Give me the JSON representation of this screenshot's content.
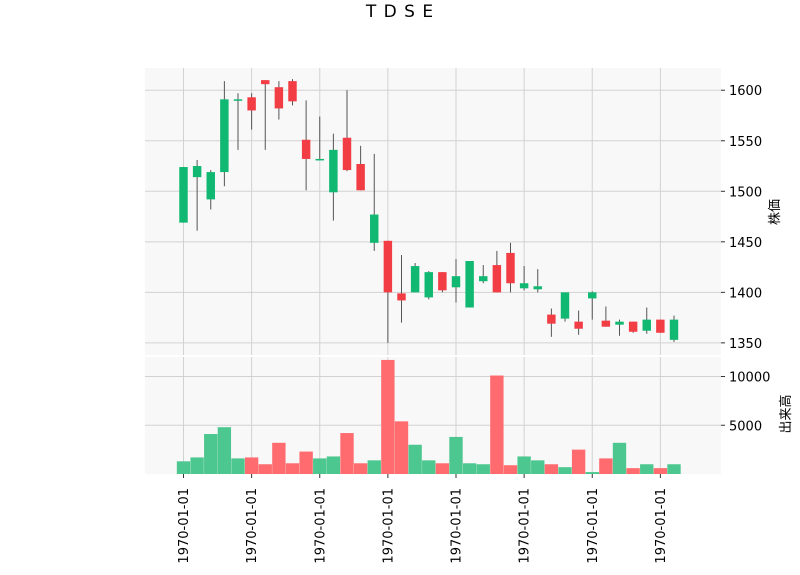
{
  "chart_data": {
    "type": "candlestick",
    "title": "T D S E",
    "price_panel": {
      "ylabel": "株価",
      "ylim": [
        1338,
        1622
      ],
      "yticks": [
        1350,
        1400,
        1450,
        1500,
        1550,
        1600
      ],
      "up_color": "#11b872",
      "down_color": "#f23d44",
      "wick_color": "#555555",
      "candles": [
        {
          "o": 1469,
          "h": 1524,
          "l": 1469,
          "c": 1524
        },
        {
          "o": 1514,
          "h": 1531,
          "l": 1461,
          "c": 1525
        },
        {
          "o": 1492,
          "h": 1521,
          "l": 1482,
          "c": 1519
        },
        {
          "o": 1519,
          "h": 1609,
          "l": 1505,
          "c": 1591
        },
        {
          "o": 1591,
          "h": 1597,
          "l": 1541,
          "c": 1591
        },
        {
          "o": 1593,
          "h": 1597,
          "l": 1561,
          "c": 1580
        },
        {
          "o": 1610,
          "h": 1610,
          "l": 1541,
          "c": 1606
        },
        {
          "o": 1603,
          "h": 1609,
          "l": 1571,
          "c": 1582
        },
        {
          "o": 1609,
          "h": 1611,
          "l": 1585,
          "c": 1589
        },
        {
          "o": 1551,
          "h": 1590,
          "l": 1501,
          "c": 1532
        },
        {
          "o": 1532,
          "h": 1574,
          "l": 1531,
          "c": 1532
        },
        {
          "o": 1499,
          "h": 1557,
          "l": 1471,
          "c": 1541
        },
        {
          "o": 1553,
          "h": 1600,
          "l": 1520,
          "c": 1521
        },
        {
          "o": 1527,
          "h": 1545,
          "l": 1501,
          "c": 1501
        },
        {
          "o": 1449,
          "h": 1537,
          "l": 1441,
          "c": 1477
        },
        {
          "o": 1451,
          "h": 1451,
          "l": 1350,
          "c": 1400
        },
        {
          "o": 1399,
          "h": 1437,
          "l": 1370,
          "c": 1392
        },
        {
          "o": 1400,
          "h": 1429,
          "l": 1400,
          "c": 1426
        },
        {
          "o": 1395,
          "h": 1421,
          "l": 1393,
          "c": 1420
        },
        {
          "o": 1420,
          "h": 1420,
          "l": 1400,
          "c": 1402
        },
        {
          "o": 1405,
          "h": 1433,
          "l": 1390,
          "c": 1416
        },
        {
          "o": 1385,
          "h": 1431,
          "l": 1385,
          "c": 1431
        },
        {
          "o": 1411,
          "h": 1427,
          "l": 1409,
          "c": 1416
        },
        {
          "o": 1427,
          "h": 1441,
          "l": 1400,
          "c": 1400
        },
        {
          "o": 1439,
          "h": 1449,
          "l": 1400,
          "c": 1409
        },
        {
          "o": 1404,
          "h": 1426,
          "l": 1402,
          "c": 1409
        },
        {
          "o": 1403,
          "h": 1423,
          "l": 1400,
          "c": 1406
        },
        {
          "o": 1378,
          "h": 1384,
          "l": 1356,
          "c": 1369
        },
        {
          "o": 1374,
          "h": 1400,
          "l": 1371,
          "c": 1400
        },
        {
          "o": 1371,
          "h": 1382,
          "l": 1358,
          "c": 1364
        },
        {
          "o": 1394,
          "h": 1401,
          "l": 1373,
          "c": 1400
        },
        {
          "o": 1372,
          "h": 1386,
          "l": 1366,
          "c": 1366
        },
        {
          "o": 1368,
          "h": 1373,
          "l": 1357,
          "c": 1371
        },
        {
          "o": 1371,
          "h": 1371,
          "l": 1360,
          "c": 1361
        },
        {
          "o": 1362,
          "h": 1385,
          "l": 1359,
          "c": 1373
        },
        {
          "o": 1373,
          "h": 1373,
          "l": 1360,
          "c": 1360
        },
        {
          "o": 1353,
          "h": 1377,
          "l": 1351,
          "c": 1373
        }
      ]
    },
    "volume_panel": {
      "ylabel": "出来高",
      "ylim": [
        0,
        12000
      ],
      "yticks": [
        5000,
        10000
      ],
      "up_color": "#4cc78f",
      "down_color": "#ff6b6e",
      "volumes": [
        1300,
        1700,
        4100,
        4800,
        1600,
        1700,
        1000,
        3200,
        1100,
        2300,
        1600,
        1800,
        4200,
        1100,
        1400,
        11700,
        5400,
        3000,
        1400,
        1100,
        3800,
        1100,
        1000,
        10100,
        900,
        1800,
        1400,
        1000,
        700,
        2500,
        200,
        1600,
        3200,
        600,
        1000,
        600,
        1000
      ]
    },
    "xticks": {
      "labels": [
        "1970-01-01",
        "1970-01-01",
        "1970-01-01",
        "1970-01-01",
        "1970-01-01",
        "1970-01-01",
        "1970-01-01",
        "1970-01-01"
      ],
      "at_candle_index": [
        0,
        5,
        10,
        15,
        20,
        25,
        30,
        35
      ]
    }
  }
}
